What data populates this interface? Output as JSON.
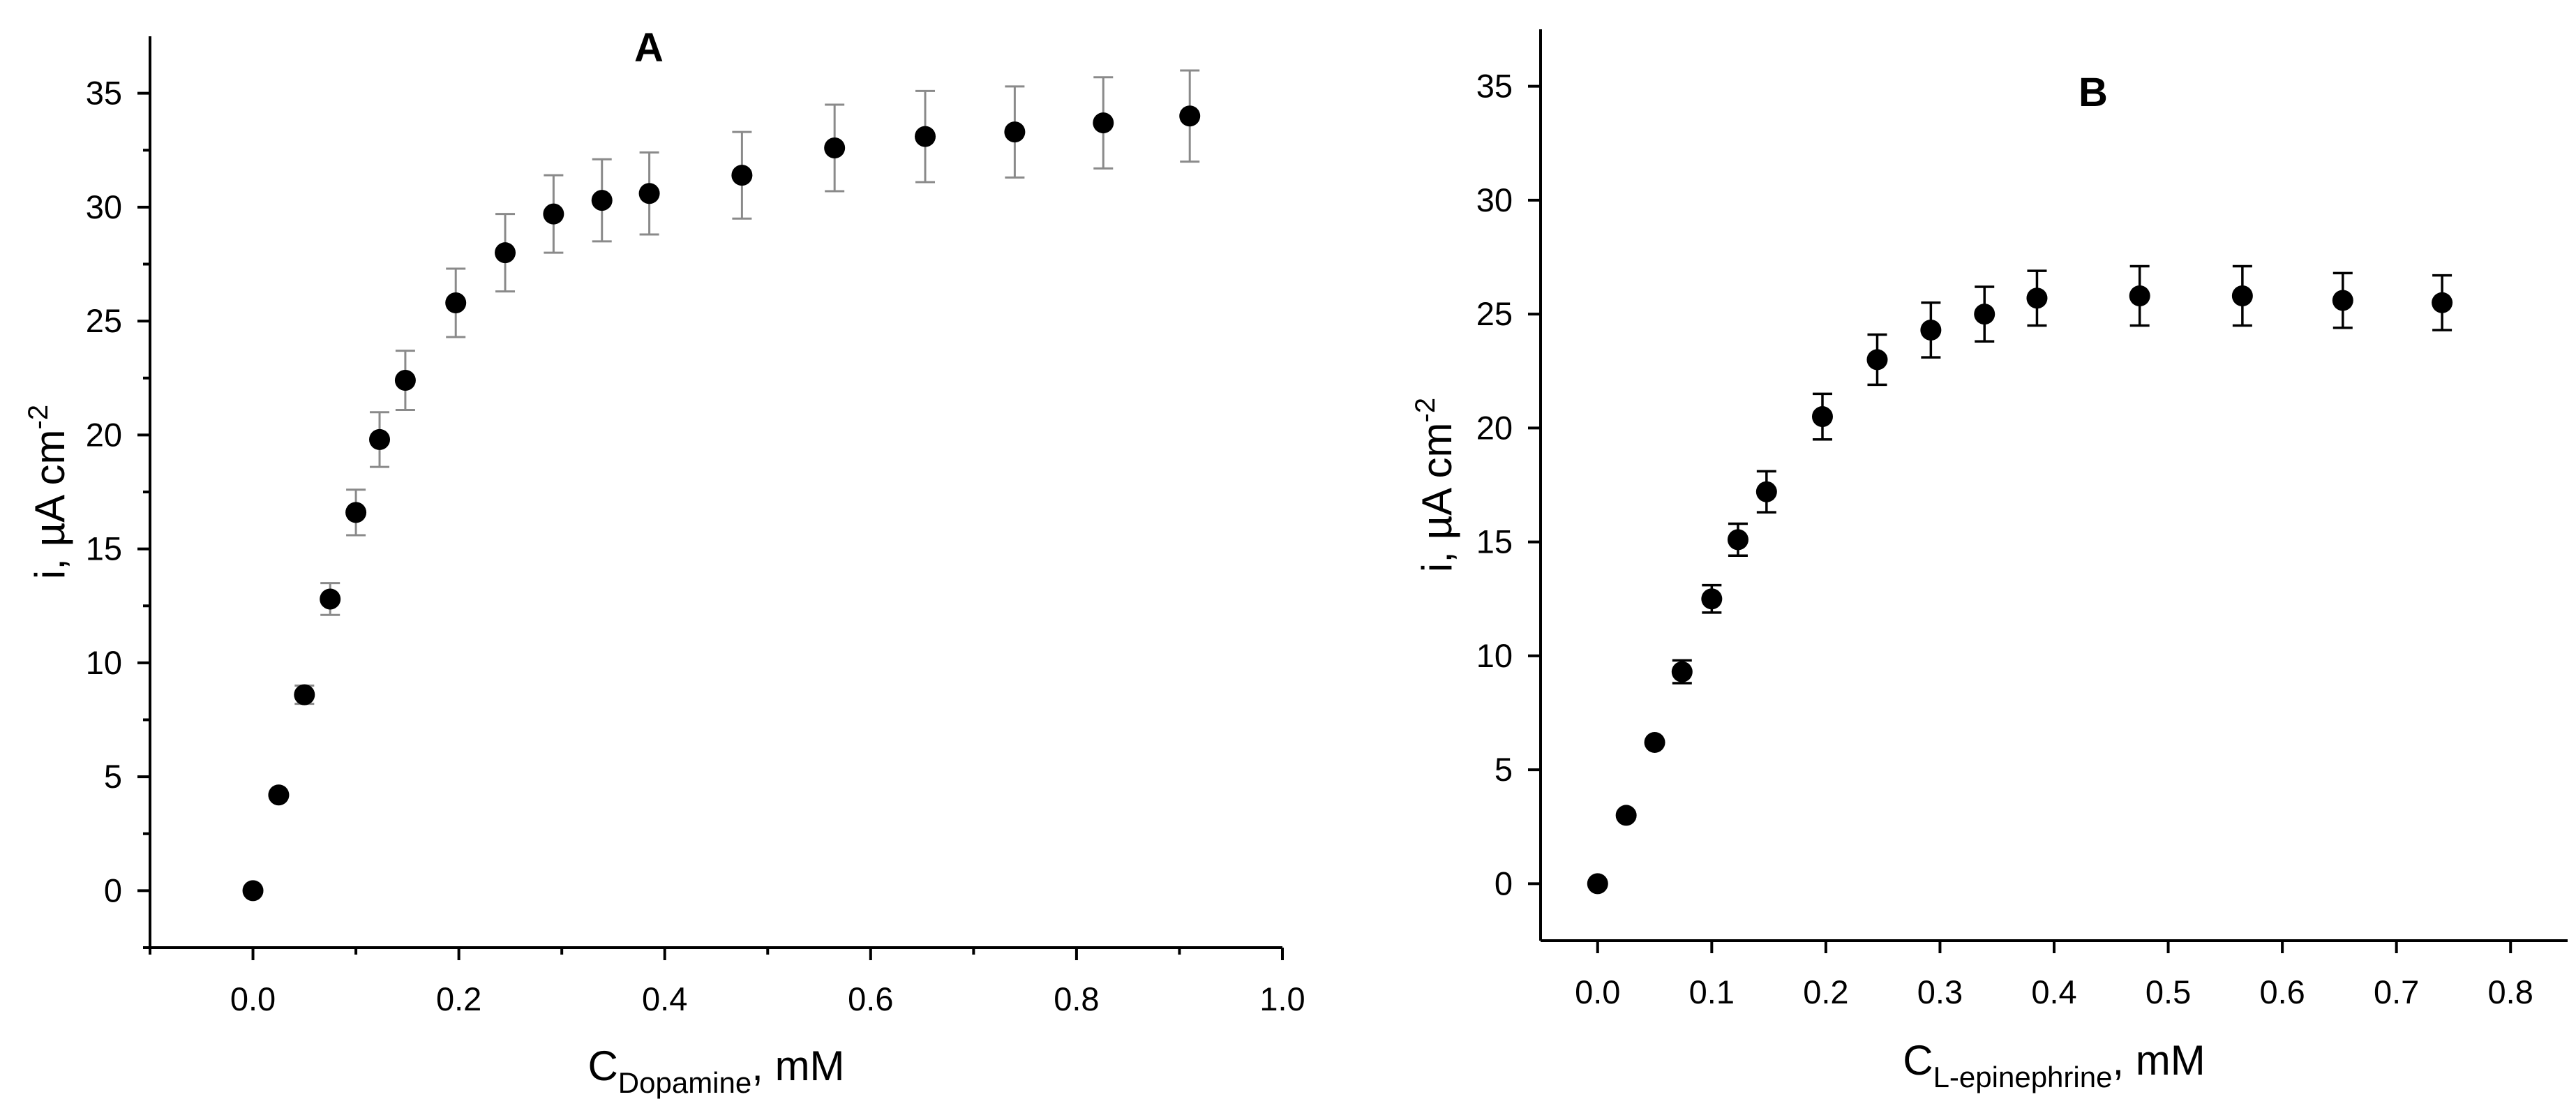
{
  "chart_data": [
    {
      "type": "scatter",
      "title": "A",
      "xlabel": "C",
      "xlabel_sub": "Dopamine",
      "xlabel_suffix": ", mM",
      "ylabel": "i, µA cm",
      "ylabel_sup": "-2",
      "xlim": [
        -0.1,
        1.0
      ],
      "ylim": [
        -2.5,
        37.5
      ],
      "xticks": [
        0.0,
        0.2,
        0.4,
        0.6,
        0.8,
        1.0
      ],
      "xtick_labels": [
        "0.0",
        "0.2",
        "0.4",
        "0.6",
        "0.8",
        "1.0"
      ],
      "yticks": [
        0,
        5,
        10,
        15,
        20,
        25,
        30,
        35
      ],
      "ytick_labels": [
        "0",
        "5",
        "10",
        "15",
        "20",
        "25",
        "30",
        "35"
      ],
      "error_bar_color": "#8a8a8a",
      "series": [
        {
          "name": "Dopamine",
          "x": [
            0.0,
            0.025,
            0.05,
            0.075,
            0.1,
            0.123,
            0.148,
            0.197,
            0.245,
            0.292,
            0.339,
            0.385,
            0.475,
            0.565,
            0.653,
            0.74,
            0.826,
            0.91
          ],
          "y": [
            0.0,
            4.2,
            8.6,
            12.8,
            16.6,
            19.8,
            22.4,
            25.8,
            28.0,
            29.7,
            30.3,
            30.6,
            31.4,
            32.6,
            33.1,
            33.3,
            33.7,
            34.0
          ],
          "err": [
            0.0,
            0.0,
            0.4,
            0.7,
            1.0,
            1.2,
            1.3,
            1.5,
            1.7,
            1.7,
            1.8,
            1.8,
            1.9,
            1.9,
            2.0,
            2.0,
            2.0,
            2.0
          ]
        }
      ]
    },
    {
      "type": "scatter",
      "title": "B",
      "xlabel": "C",
      "xlabel_sub": "L-epinephrine",
      "xlabel_suffix": ", mM",
      "ylabel": "i, µA cm",
      "ylabel_sup": "-2",
      "xlim": [
        -0.05,
        0.85
      ],
      "ylim": [
        -2.5,
        37.5
      ],
      "xticks": [
        0.0,
        0.1,
        0.2,
        0.3,
        0.4,
        0.5,
        0.6,
        0.7,
        0.8
      ],
      "xtick_labels": [
        "0.0",
        "0.1",
        "0.2",
        "0.3",
        "0.4",
        "0.5",
        "0.6",
        "0.7",
        "0.8"
      ],
      "yticks": [
        0,
        5,
        10,
        15,
        20,
        25,
        30,
        35
      ],
      "ytick_labels": [
        "0",
        "5",
        "10",
        "15",
        "20",
        "25",
        "30",
        "35"
      ],
      "error_bar_color": "#000000",
      "series": [
        {
          "name": "L-epinephrine",
          "x": [
            0.0,
            0.025,
            0.05,
            0.074,
            0.1,
            0.123,
            0.148,
            0.197,
            0.245,
            0.292,
            0.339,
            0.385,
            0.475,
            0.565,
            0.653,
            0.74
          ],
          "y": [
            0.0,
            3.0,
            6.2,
            9.3,
            12.5,
            15.1,
            17.2,
            20.5,
            23.0,
            24.3,
            25.0,
            25.7,
            25.8,
            25.8,
            25.6,
            25.5
          ],
          "err": [
            0.0,
            0.0,
            0.0,
            0.5,
            0.6,
            0.7,
            0.9,
            1.0,
            1.1,
            1.2,
            1.2,
            1.2,
            1.3,
            1.3,
            1.2,
            1.2
          ]
        }
      ]
    }
  ]
}
